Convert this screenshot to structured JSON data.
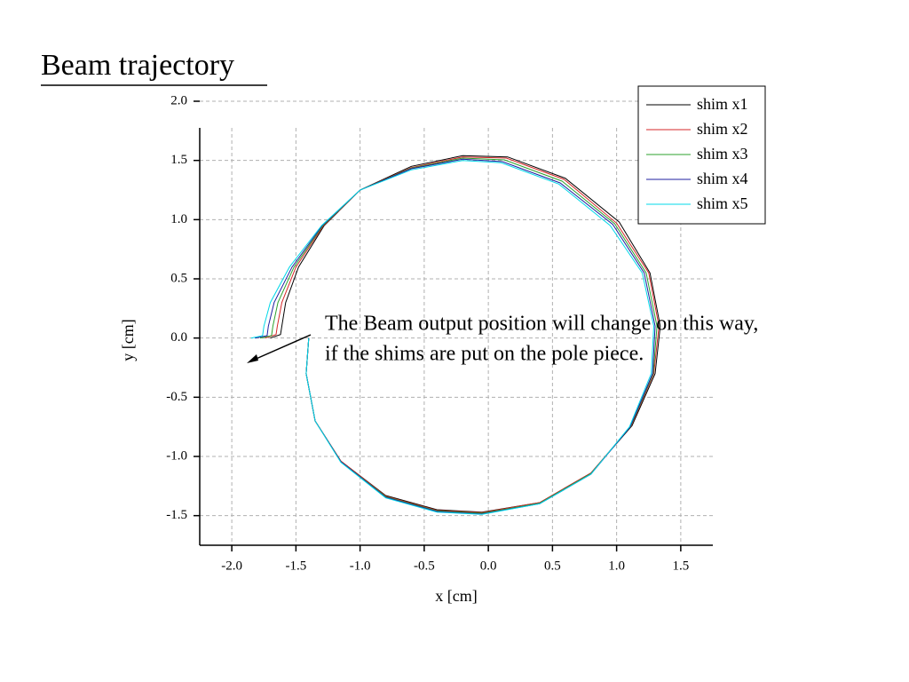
{
  "chart_data": {
    "type": "line",
    "title": "Beam trajectory",
    "xlabel": "x [cm]",
    "ylabel": "y [cm]",
    "annotation": [
      "The Beam output position will change on this way,",
      "if the shims are put on the pole piece."
    ],
    "xlim": [
      -2.25,
      1.75
    ],
    "ylim": [
      -1.75,
      2.0
    ],
    "xticks": [
      {
        "value": -2,
        "label": "-2.0"
      },
      -1.5,
      {
        "value": -1,
        "label": "-1.0"
      },
      -0.5,
      {
        "value": 0,
        "label": "0.0"
      },
      0.5,
      {
        "value": 1,
        "label": "1.0"
      },
      1.5
    ],
    "yticks": [
      -1.5,
      {
        "value": -1,
        "label": "-1.0"
      },
      -0.5,
      {
        "value": 0,
        "label": "0.0"
      },
      0.5,
      {
        "value": 1,
        "label": "1.0"
      },
      1.5,
      {
        "value": 2,
        "label": "2.0"
      }
    ],
    "grid": true,
    "legend": "upper right",
    "series": [
      {
        "name": "shim x1",
        "color": "#000000",
        "x": [
          -1.4,
          -1.42,
          -1.35,
          -1.15,
          -0.8,
          -0.4,
          -0.05,
          0.4,
          0.8,
          1.12,
          1.3,
          1.34,
          1.26,
          1.02,
          0.6,
          0.15,
          -0.2,
          -0.6,
          -1.0,
          -1.28,
          -1.48,
          -1.58,
          -1.61,
          -1.62,
          -1.7
        ],
        "values": [
          0,
          -0.3,
          -0.7,
          -1.04,
          -1.33,
          -1.45,
          -1.47,
          -1.39,
          -1.14,
          -0.74,
          -0.3,
          0.1,
          0.55,
          0.98,
          1.35,
          1.53,
          1.54,
          1.45,
          1.25,
          0.95,
          0.6,
          0.3,
          0.1,
          0.03,
          0
        ]
      },
      {
        "name": "shim x2",
        "color": "#d62728",
        "x": [
          -1.4,
          -1.42,
          -1.35,
          -1.15,
          -0.8,
          -0.4,
          -0.05,
          0.4,
          0.8,
          1.115,
          1.29,
          1.33,
          1.25,
          1.0,
          0.59,
          0.14,
          -0.2,
          -0.6,
          -1.0,
          -1.285,
          -1.5,
          -1.61,
          -1.645,
          -1.655,
          -1.74
        ],
        "values": [
          0,
          -0.3,
          -0.7,
          -1.04,
          -1.335,
          -1.455,
          -1.475,
          -1.39,
          -1.14,
          -0.74,
          -0.3,
          0.1,
          0.55,
          0.97,
          1.34,
          1.52,
          1.53,
          1.44,
          1.25,
          0.95,
          0.6,
          0.3,
          0.1,
          0.03,
          0
        ]
      },
      {
        "name": "shim x3",
        "color": "#2ca02c",
        "x": [
          -1.4,
          -1.42,
          -1.35,
          -1.15,
          -0.8,
          -0.4,
          -0.05,
          0.4,
          0.8,
          1.11,
          1.285,
          1.315,
          1.23,
          0.985,
          0.575,
          0.125,
          -0.2,
          -0.6,
          -1.0,
          -1.29,
          -1.515,
          -1.64,
          -1.68,
          -1.69,
          -1.78
        ],
        "values": [
          0,
          -0.3,
          -0.7,
          -1.045,
          -1.34,
          -1.46,
          -1.48,
          -1.395,
          -1.145,
          -0.745,
          -0.3,
          0.1,
          0.55,
          0.965,
          1.325,
          1.505,
          1.52,
          1.435,
          1.25,
          0.95,
          0.6,
          0.3,
          0.1,
          0.02,
          0
        ]
      },
      {
        "name": "shim x4",
        "color": "#1f1fa0",
        "x": [
          -1.4,
          -1.42,
          -1.35,
          -1.15,
          -0.8,
          -0.4,
          -0.05,
          0.4,
          0.8,
          1.105,
          1.28,
          1.3,
          1.215,
          0.97,
          0.56,
          0.11,
          -0.2,
          -0.6,
          -1.0,
          -1.295,
          -1.53,
          -1.67,
          -1.715,
          -1.725,
          -1.82
        ],
        "values": [
          0,
          -0.3,
          -0.7,
          -1.045,
          -1.345,
          -1.465,
          -1.485,
          -1.4,
          -1.15,
          -0.75,
          -0.3,
          0.1,
          0.55,
          0.96,
          1.31,
          1.49,
          1.51,
          1.43,
          1.25,
          0.95,
          0.6,
          0.3,
          0.1,
          0.02,
          0
        ]
      },
      {
        "name": "shim x5",
        "color": "#00d8e8",
        "x": [
          -1.4,
          -1.42,
          -1.35,
          -1.15,
          -0.8,
          -0.4,
          -0.05,
          0.4,
          0.8,
          1.1,
          1.27,
          1.29,
          1.2,
          0.95,
          0.55,
          0.1,
          -0.2,
          -0.6,
          -1.0,
          -1.3,
          -1.55,
          -1.7,
          -1.75,
          -1.76,
          -1.85
        ],
        "values": [
          0,
          -0.3,
          -0.7,
          -1.05,
          -1.35,
          -1.47,
          -1.49,
          -1.4,
          -1.15,
          -0.75,
          -0.3,
          0.1,
          0.55,
          0.95,
          1.3,
          1.48,
          1.5,
          1.42,
          1.25,
          0.95,
          0.6,
          0.3,
          0.1,
          0.02,
          0
        ]
      }
    ]
  }
}
